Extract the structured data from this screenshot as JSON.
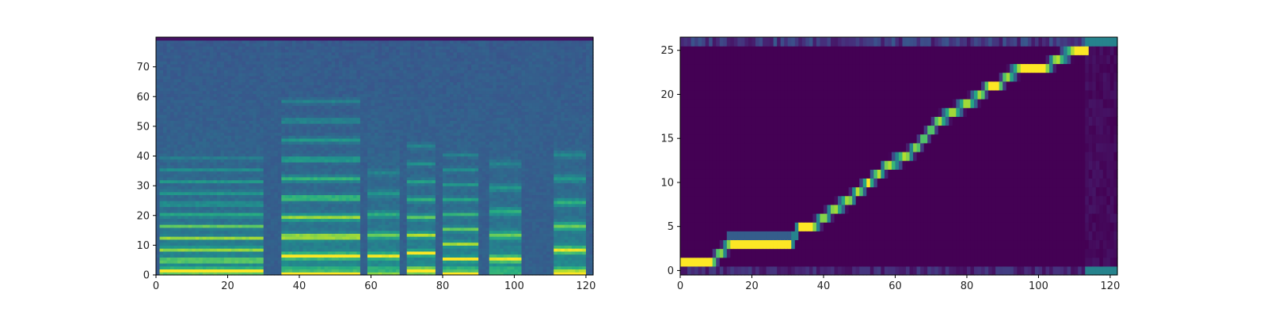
{
  "chart_data": [
    {
      "type": "heatmap",
      "description": "mel spectrogram",
      "colormap": "viridis",
      "xlim": [
        0,
        122
      ],
      "ylim": [
        0,
        80
      ],
      "x_ticks": [
        0,
        20,
        40,
        60,
        80,
        100,
        120
      ],
      "y_ticks": [
        0,
        10,
        20,
        30,
        40,
        50,
        60,
        70
      ],
      "x_tick_labels": [
        "0",
        "20",
        "40",
        "60",
        "80",
        "100",
        "120"
      ],
      "y_tick_labels": [
        "0",
        "10",
        "20",
        "30",
        "40",
        "50",
        "60",
        "70"
      ],
      "silence_ranges": [
        [
          0,
          1
        ],
        [
          30,
          35
        ],
        [
          57,
          59
        ],
        [
          68,
          70
        ],
        [
          78,
          80
        ],
        [
          90,
          93
        ],
        [
          102,
          111
        ],
        [
          120,
          122
        ]
      ],
      "voiced_segments": [
        {
          "start": 1,
          "end": 30,
          "f0_bin": 4.5,
          "harmonic_spacing": 3.8,
          "top_bin": 40,
          "strength": 0.9
        },
        {
          "start": 35,
          "end": 57,
          "f0_bin": 6,
          "harmonic_spacing": 6.5,
          "top_bin": 60,
          "strength": 1.0
        },
        {
          "start": 59,
          "end": 68,
          "f0_bin": 6,
          "harmonic_spacing": 7,
          "top_bin": 35,
          "strength": 0.75
        },
        {
          "start": 70,
          "end": 78,
          "f0_bin": 7,
          "harmonic_spacing": 6,
          "top_bin": 45,
          "strength": 0.85
        },
        {
          "start": 80,
          "end": 90,
          "f0_bin": 5,
          "harmonic_spacing": 5,
          "top_bin": 42,
          "strength": 0.8
        },
        {
          "start": 93,
          "end": 102,
          "f0_bin": 5,
          "harmonic_spacing": 8,
          "top_bin": 40,
          "strength": 0.75
        },
        {
          "start": 111,
          "end": 120,
          "f0_bin": 8,
          "harmonic_spacing": 8,
          "top_bin": 45,
          "strength": 0.75
        }
      ]
    },
    {
      "type": "heatmap",
      "description": "attention alignment",
      "colormap": "viridis",
      "xlim": [
        0,
        122
      ],
      "ylim": [
        -0.5,
        26.5
      ],
      "x_ticks": [
        0,
        20,
        40,
        60,
        80,
        100,
        120
      ],
      "y_ticks": [
        0,
        5,
        10,
        15,
        20,
        25
      ],
      "x_tick_labels": [
        "0",
        "20",
        "40",
        "60",
        "80",
        "100",
        "120"
      ],
      "y_tick_labels": [
        "0",
        "5",
        "10",
        "15",
        "20",
        "25"
      ],
      "alignment_path": [
        [
          0,
          1
        ],
        [
          9,
          1
        ],
        [
          11,
          2
        ],
        [
          14,
          3
        ],
        [
          31,
          3
        ],
        [
          33,
          5
        ],
        [
          37,
          5
        ],
        [
          43,
          7
        ],
        [
          47,
          8
        ],
        [
          58,
          12
        ],
        [
          63,
          13
        ],
        [
          66,
          14
        ],
        [
          72,
          17
        ],
        [
          80,
          19
        ],
        [
          84,
          20
        ],
        [
          86,
          21
        ],
        [
          89,
          21
        ],
        [
          91,
          22
        ],
        [
          95,
          23
        ],
        [
          102,
          23
        ],
        [
          105,
          24
        ],
        [
          110,
          25
        ],
        [
          113,
          25
        ]
      ]
    }
  ]
}
